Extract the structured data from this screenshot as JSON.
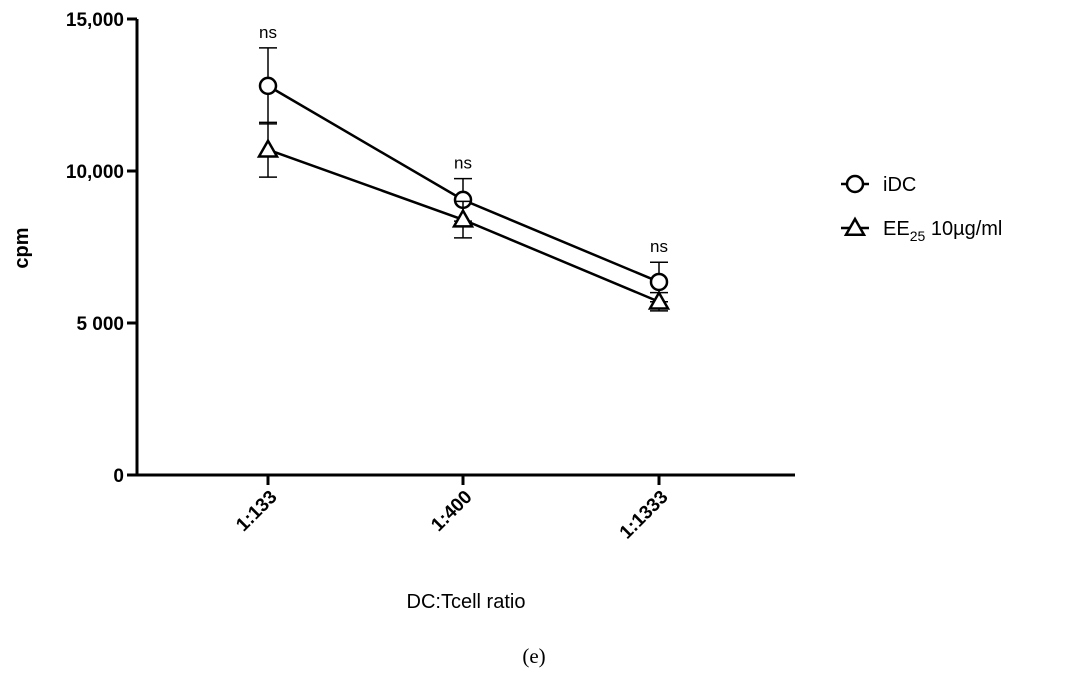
{
  "chart_data": {
    "type": "line",
    "categories": [
      "1:133",
      "1:400",
      "1:1333"
    ],
    "xlabel": "DC:Tcell ratio",
    "ylabel": "cpm",
    "ylim": [
      0,
      15000
    ],
    "yticks": [
      {
        "value": 0,
        "label": "0"
      },
      {
        "value": 5000,
        "label": "5 000"
      },
      {
        "value": 10000,
        "label": "10,000"
      },
      {
        "value": 15000,
        "label": "15,000"
      }
    ],
    "series": [
      {
        "name": "iDC",
        "marker": "circle",
        "values": [
          12800,
          9050,
          6350
        ],
        "error": [
          1250,
          700,
          650
        ]
      },
      {
        "name": "EE25 10µg/ml",
        "name_main": "EE",
        "name_sub": "25",
        "name_rest": " 10µg/ml",
        "marker": "triangle",
        "values": [
          10700,
          8400,
          5700
        ],
        "error": [
          900,
          600,
          300
        ]
      }
    ],
    "annotations": [
      "ns",
      "ns",
      "ns"
    ],
    "legend_position": "right",
    "grid": false
  },
  "caption": "(e)"
}
